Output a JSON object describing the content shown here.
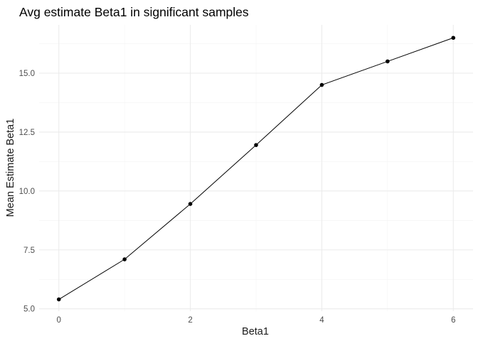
{
  "chart_data": {
    "type": "line",
    "title": "Avg estimate Beta1 in significant samples",
    "xlabel": "Beta1",
    "ylabel": "Mean Estimate Beta1",
    "x": [
      0,
      1,
      2,
      3,
      4,
      5,
      6
    ],
    "y": [
      5.4,
      7.1,
      9.45,
      11.95,
      14.5,
      15.5,
      16.5
    ],
    "xlim": [
      -0.3,
      6.3
    ],
    "ylim": [
      4.9,
      17.05
    ],
    "x_ticks": [
      "0",
      "2",
      "4",
      "6"
    ],
    "y_ticks": [
      "5.0",
      "7.5",
      "10.0",
      "12.5",
      "15.0"
    ],
    "grid": true,
    "line_color": "#000000",
    "point_color": "#000000"
  }
}
